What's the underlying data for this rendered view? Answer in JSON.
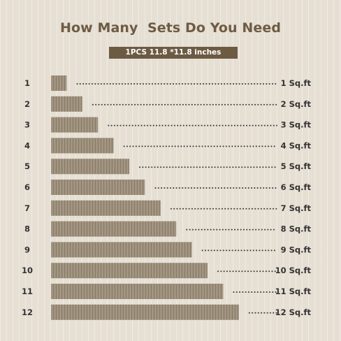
{
  "title": "How Many  Sets Do You Need",
  "subtitle": "1PCS 11.8 *11.8 inches",
  "colors": {
    "background": "#ede6db",
    "title": "#6e5b43",
    "badge": "#6c5a43",
    "bar": "#9b8e7b",
    "text": "#333333"
  },
  "chart_data": {
    "type": "bar",
    "orientation": "horizontal",
    "categories": [
      "1",
      "2",
      "3",
      "4",
      "5",
      "6",
      "7",
      "8",
      "9",
      "10",
      "11",
      "12"
    ],
    "values": [
      1,
      2,
      3,
      4,
      5,
      6,
      7,
      8,
      9,
      10,
      11,
      12
    ],
    "value_labels": [
      "1 Sq.ft",
      "2 Sq.ft",
      "3 Sq.ft",
      "4 Sq.ft",
      "5 Sq.ft",
      "6 Sq.ft",
      "7 Sq.ft",
      "8 Sq.ft",
      "9 Sq.ft",
      "10 Sq.ft",
      "11 Sq.ft",
      "12 Sq.ft"
    ],
    "unit": "Sq.ft",
    "xlim": [
      0,
      12
    ],
    "grid": false,
    "legend": "none"
  }
}
